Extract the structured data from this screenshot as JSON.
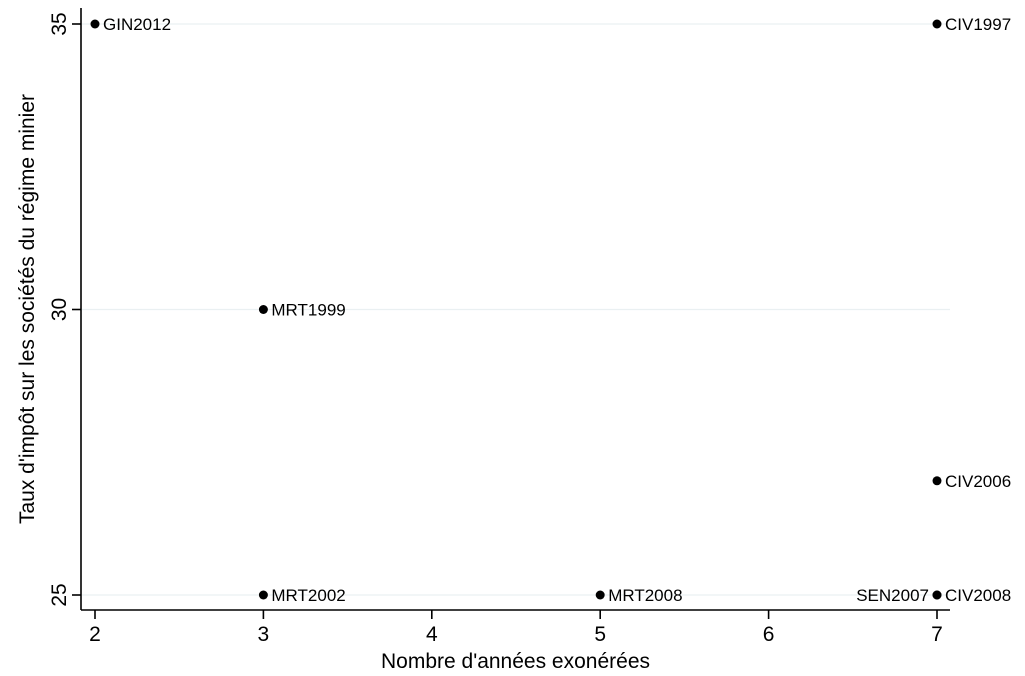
{
  "chart_data": {
    "type": "scatter",
    "title": "",
    "xlabel": "Nombre d'années exonérées",
    "ylabel": "Taux d'impôt sur les sociétés du régime minier",
    "xlim": [
      2,
      7
    ],
    "ylim": [
      25,
      35
    ],
    "x_ticks": [
      2,
      3,
      4,
      5,
      6,
      7
    ],
    "y_ticks": [
      25,
      30,
      35
    ],
    "grid": "horizontal",
    "marker_color": "#000000",
    "points": [
      {
        "x": 2,
        "y": 35,
        "label": "GIN2012",
        "label_side": "right"
      },
      {
        "x": 7,
        "y": 35,
        "label": "CIV1997",
        "label_side": "right"
      },
      {
        "x": 3,
        "y": 30,
        "label": "MRT1999",
        "label_side": "right"
      },
      {
        "x": 7,
        "y": 27,
        "label": "CIV2006",
        "label_side": "right"
      },
      {
        "x": 3,
        "y": 25,
        "label": "MRT2002",
        "label_side": "right"
      },
      {
        "x": 5,
        "y": 25,
        "label": "MRT2008",
        "label_side": "right"
      },
      {
        "x": 7,
        "y": 25,
        "label": "SEN2007",
        "label_side": "left"
      },
      {
        "x": 7,
        "y": 25,
        "label": "CIV2008",
        "label_side": "right"
      }
    ]
  }
}
